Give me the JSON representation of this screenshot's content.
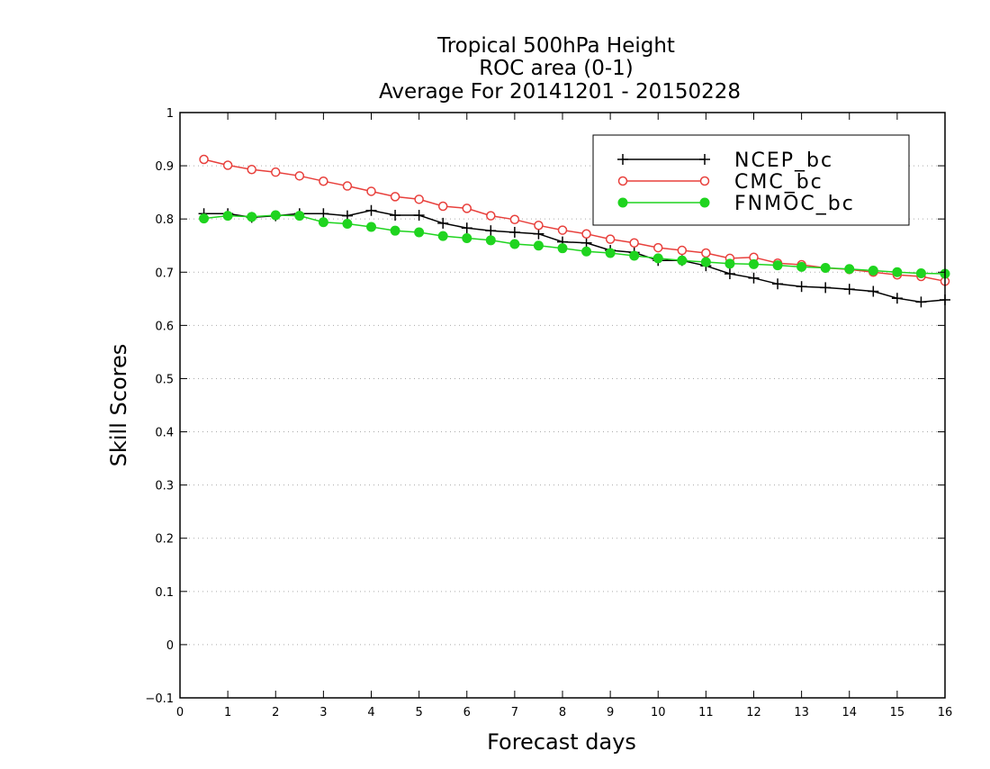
{
  "chart_data": {
    "type": "line",
    "title_lines": [
      "Tropical 500hPa Height",
      "ROC area (0-1)",
      "Average For 20141201 - 20150228"
    ],
    "xlabel": "Forecast days",
    "ylabel": "Skill Scores",
    "xlim": [
      0,
      16
    ],
    "ylim": [
      -0.1,
      1
    ],
    "x_ticks": [
      "0",
      "1",
      "2",
      "3",
      "4",
      "5",
      "6",
      "7",
      "8",
      "9",
      "10",
      "11",
      "12",
      "13",
      "14",
      "15",
      "16"
    ],
    "y_ticks": [
      "−0.1",
      "0",
      "0.1",
      "0.2",
      "0.3",
      "0.4",
      "0.5",
      "0.6",
      "0.7",
      "0.8",
      "0.9",
      "1"
    ],
    "y_tick_values": [
      -0.1,
      0,
      0.1,
      0.2,
      0.3,
      0.4,
      0.5,
      0.6,
      0.7,
      0.8,
      0.9,
      1.0
    ],
    "grid": "horizontal-dotted",
    "legend_position": "top-right",
    "x": [
      0.5,
      1,
      1.5,
      2,
      2.5,
      3,
      3.5,
      4,
      4.5,
      5,
      5.5,
      6,
      6.5,
      7,
      7.5,
      8,
      8.5,
      9,
      9.5,
      10,
      10.5,
      11,
      11.5,
      12,
      12.5,
      13,
      13.5,
      14,
      14.5,
      15,
      15.5,
      16
    ],
    "series": [
      {
        "name": "NCEP_bc",
        "color": "#000000",
        "marker": "plus",
        "values": [
          0.81,
          0.81,
          0.803,
          0.806,
          0.81,
          0.81,
          0.806,
          0.816,
          0.807,
          0.807,
          0.792,
          0.783,
          0.778,
          0.775,
          0.772,
          0.757,
          0.755,
          0.741,
          0.737,
          0.722,
          0.722,
          0.712,
          0.697,
          0.689,
          0.678,
          0.673,
          0.671,
          0.668,
          0.664,
          0.651,
          0.644,
          0.648
        ]
      },
      {
        "name": "CMC_bc",
        "color": "#e8403c",
        "marker": "open-circle",
        "values": [
          0.912,
          0.901,
          0.893,
          0.888,
          0.881,
          0.871,
          0.862,
          0.852,
          0.842,
          0.837,
          0.824,
          0.82,
          0.806,
          0.799,
          0.788,
          0.779,
          0.772,
          0.762,
          0.755,
          0.746,
          0.741,
          0.736,
          0.726,
          0.728,
          0.717,
          0.714,
          0.708,
          0.705,
          0.7,
          0.695,
          0.692,
          0.683
        ]
      },
      {
        "name": "FNMOC_bc",
        "color": "#1fd41f",
        "marker": "filled-circle",
        "values": [
          0.801,
          0.806,
          0.804,
          0.807,
          0.806,
          0.794,
          0.791,
          0.785,
          0.778,
          0.775,
          0.768,
          0.764,
          0.76,
          0.753,
          0.75,
          0.745,
          0.739,
          0.736,
          0.731,
          0.726,
          0.722,
          0.719,
          0.716,
          0.715,
          0.713,
          0.71,
          0.708,
          0.706,
          0.703,
          0.7,
          0.698,
          0.697
        ]
      }
    ]
  }
}
